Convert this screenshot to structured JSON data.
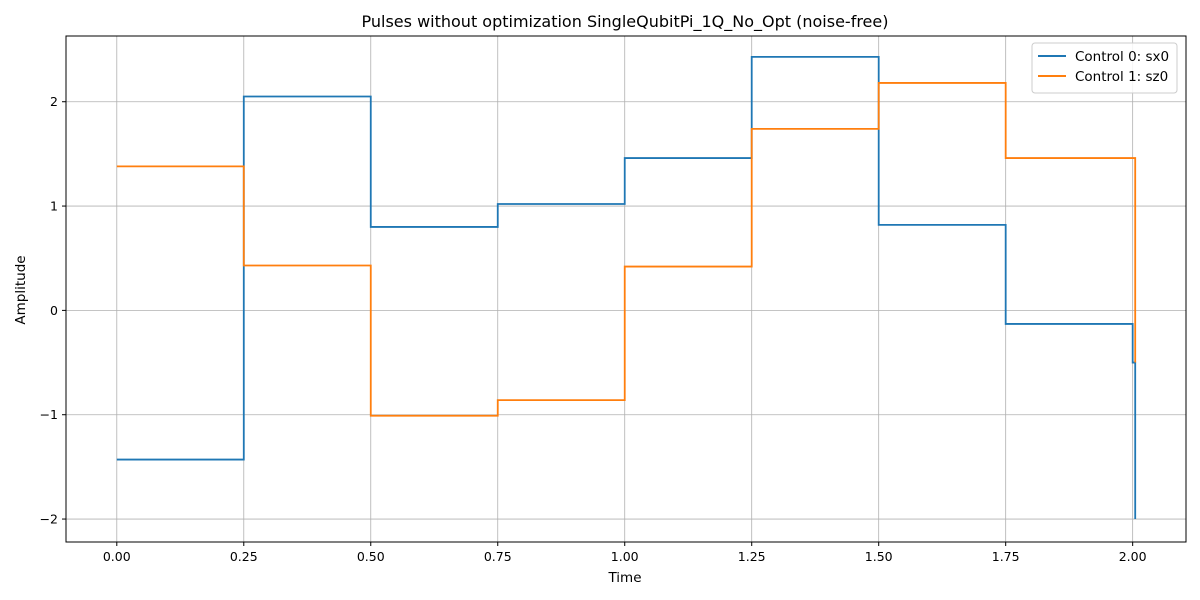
{
  "chart_data": {
    "type": "line",
    "step": "post",
    "title": "Pulses without optimization SingleQubitPi_1Q_No_Opt (noise-free)",
    "xlabel": "Time",
    "ylabel": "Amplitude",
    "xlim": [
      -0.1,
      2.105
    ],
    "ylim": [
      -2.22,
      2.63
    ],
    "xticks": [
      0.0,
      0.25,
      0.5,
      0.75,
      1.0,
      1.25,
      1.5,
      1.75,
      2.0
    ],
    "xtick_labels": [
      "0.00",
      "0.25",
      "0.50",
      "0.75",
      "1.00",
      "1.25",
      "1.50",
      "1.75",
      "2.00"
    ],
    "yticks": [
      -2,
      -1,
      0,
      1,
      2
    ],
    "ytick_labels": [
      "−2",
      "−1",
      "0",
      "1",
      "2"
    ],
    "grid": true,
    "legend_position": "top-right",
    "colors": {
      "series0": "#1f77b4",
      "series1": "#ff7f0e",
      "grid": "#b0b0b0"
    },
    "series": [
      {
        "name": "Control 0: sx0",
        "x": [
          0.0,
          0.25,
          0.5,
          0.75,
          1.0,
          1.25,
          1.5,
          1.75,
          2.0,
          2.005
        ],
        "values": [
          -1.43,
          2.05,
          0.8,
          1.02,
          1.46,
          2.43,
          0.82,
          -0.13,
          -0.5,
          -2.0
        ]
      },
      {
        "name": "Control 1: sz0",
        "x": [
          0.0,
          0.25,
          0.5,
          0.75,
          1.0,
          1.25,
          1.5,
          1.75,
          2.0,
          2.005
        ],
        "values": [
          1.38,
          0.43,
          -1.01,
          -0.86,
          0.42,
          1.74,
          2.18,
          1.46,
          1.46,
          -0.5
        ]
      }
    ]
  }
}
